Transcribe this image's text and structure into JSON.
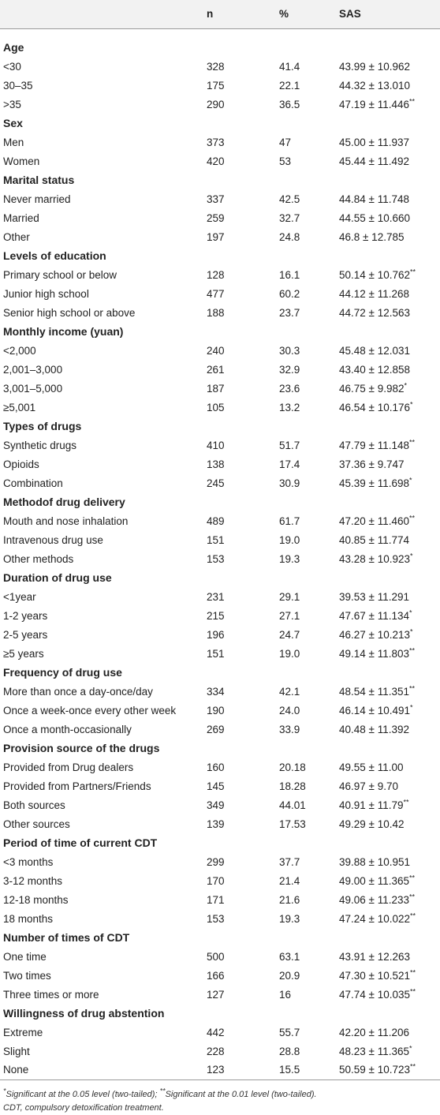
{
  "headers": {
    "label": "",
    "n": "n",
    "pct": "%",
    "sas": "SAS"
  },
  "sections": [
    {
      "title": "Age",
      "rows": [
        {
          "label": "<30",
          "n": "328",
          "pct": "41.4",
          "sas": "43.99 ± 10.962",
          "sig": ""
        },
        {
          "label": "30–35",
          "n": "175",
          "pct": "22.1",
          "sas": "44.32 ± 13.010",
          "sig": ""
        },
        {
          "label": ">35",
          "n": "290",
          "pct": "36.5",
          "sas": "47.19 ± 11.446",
          "sig": "**"
        }
      ]
    },
    {
      "title": "Sex",
      "rows": [
        {
          "label": "Men",
          "n": "373",
          "pct": "47",
          "sas": "45.00 ± 11.937",
          "sig": ""
        },
        {
          "label": "Women",
          "n": "420",
          "pct": "53",
          "sas": "45.44 ± 11.492",
          "sig": ""
        }
      ]
    },
    {
      "title": "Marital status",
      "rows": [
        {
          "label": "Never married",
          "n": "337",
          "pct": "42.5",
          "sas": "44.84 ± 11.748",
          "sig": ""
        },
        {
          "label": "Married",
          "n": "259",
          "pct": "32.7",
          "sas": "44.55 ± 10.660",
          "sig": ""
        },
        {
          "label": "Other",
          "n": "197",
          "pct": "24.8",
          "sas": "46.8 ± 12.785",
          "sig": ""
        }
      ]
    },
    {
      "title": "Levels of education",
      "rows": [
        {
          "label": "Primary school or below",
          "n": "128",
          "pct": "16.1",
          "sas": "50.14 ± 10.762",
          "sig": "**"
        },
        {
          "label": "Junior high school",
          "n": "477",
          "pct": "60.2",
          "sas": "44.12 ± 11.268",
          "sig": ""
        },
        {
          "label": "Senior high school or above",
          "n": "188",
          "pct": "23.7",
          "sas": "44.72 ± 12.563",
          "sig": ""
        }
      ]
    },
    {
      "title": "Monthly income (yuan)",
      "rows": [
        {
          "label": "<2,000",
          "n": "240",
          "pct": "30.3",
          "sas": "45.48 ± 12.031",
          "sig": ""
        },
        {
          "label": "2,001–3,000",
          "n": "261",
          "pct": "32.9",
          "sas": "43.40 ± 12.858",
          "sig": ""
        },
        {
          "label": "3,001–5,000",
          "n": "187",
          "pct": "23.6",
          "sas": "46.75 ± 9.982",
          "sig": "*"
        },
        {
          "label": "≥5,001",
          "n": "105",
          "pct": "13.2",
          "sas": "46.54 ± 10.176",
          "sig": "*"
        }
      ]
    },
    {
      "title": "Types of drugs",
      "rows": [
        {
          "label": "Synthetic drugs",
          "n": "410",
          "pct": "51.7",
          "sas": "47.79 ± 11.148",
          "sig": "**"
        },
        {
          "label": "Opioids",
          "n": "138",
          "pct": "17.4",
          "sas": "37.36 ± 9.747",
          "sig": ""
        },
        {
          "label": "Combination",
          "n": "245",
          "pct": "30.9",
          "sas": "45.39 ± 11.698",
          "sig": "*"
        }
      ]
    },
    {
      "title": "Methodof drug delivery",
      "rows": [
        {
          "label": "Mouth and nose inhalation",
          "n": "489",
          "pct": "61.7",
          "sas": "47.20 ± 11.460",
          "sig": "**"
        },
        {
          "label": "Intravenous drug use",
          "n": "151",
          "pct": "19.0",
          "sas": "40.85 ± 11.774",
          "sig": ""
        },
        {
          "label": "Other methods",
          "n": "153",
          "pct": "19.3",
          "sas": "43.28 ± 10.923",
          "sig": "*"
        }
      ]
    },
    {
      "title": "Duration of drug use",
      "rows": [
        {
          "label": "<1year",
          "n": "231",
          "pct": "29.1",
          "sas": "39.53 ± 11.291",
          "sig": ""
        },
        {
          "label": "1-2 years",
          "n": "215",
          "pct": "27.1",
          "sas": "47.67 ± 11.134",
          "sig": "*"
        },
        {
          "label": "2-5 years",
          "n": "196",
          "pct": "24.7",
          "sas": "46.27 ± 10.213",
          "sig": "*"
        },
        {
          "label": "≥5 years",
          "n": "151",
          "pct": "19.0",
          "sas": "49.14 ± 11.803",
          "sig": "**"
        }
      ]
    },
    {
      "title": "Frequency of drug use",
      "rows": [
        {
          "label": "More than once a day-once/day",
          "n": "334",
          "pct": "42.1",
          "sas": "48.54 ± 11.351",
          "sig": "**"
        },
        {
          "label": "Once a week-once every other week",
          "n": "190",
          "pct": "24.0",
          "sas": "46.14 ± 10.491",
          "sig": "*"
        },
        {
          "label": "Once a month-occasionally",
          "n": "269",
          "pct": "33.9",
          "sas": "40.48 ± 11.392",
          "sig": ""
        }
      ]
    },
    {
      "title": "Provision source of the drugs",
      "rows": [
        {
          "label": "Provided from Drug dealers",
          "n": "160",
          "pct": "20.18",
          "sas": "49.55 ± 11.00",
          "sig": ""
        },
        {
          "label": "Provided from Partners/Friends",
          "n": "145",
          "pct": "18.28",
          "sas": "46.97 ± 9.70",
          "sig": ""
        },
        {
          "label": "Both sources",
          "n": "349",
          "pct": "44.01",
          "sas": "40.91 ± 11.79",
          "sig": "**"
        },
        {
          "label": "Other sources",
          "n": "139",
          "pct": "17.53",
          "sas": "49.29 ± 10.42",
          "sig": ""
        }
      ]
    },
    {
      "title": "Period of time of current CDT",
      "rows": [
        {
          "label": "<3 months",
          "n": "299",
          "pct": "37.7",
          "sas": "39.88 ± 10.951",
          "sig": ""
        },
        {
          "label": "3-12 months",
          "n": "170",
          "pct": "21.4",
          "sas": "49.00 ± 11.365",
          "sig": "**"
        },
        {
          "label": "12-18 months",
          "n": "171",
          "pct": "21.6",
          "sas": "49.06 ± 11.233",
          "sig": "**"
        },
        {
          "label": "18 months",
          "n": "153",
          "pct": "19.3",
          "sas": "47.24 ± 10.022",
          "sig": "**"
        }
      ]
    },
    {
      "title": "Number of times of CDT",
      "rows": [
        {
          "label": "One time",
          "n": "500",
          "pct": "63.1",
          "sas": "43.91 ± 12.263",
          "sig": ""
        },
        {
          "label": "Two times",
          "n": "166",
          "pct": "20.9",
          "sas": "47.30 ± 10.521",
          "sig": "**"
        },
        {
          "label": "Three times or more",
          "n": "127",
          "pct": "16",
          "sas": "47.74 ± 10.035",
          "sig": "**"
        }
      ]
    },
    {
      "title": "Willingness of drug abstention",
      "rows": [
        {
          "label": "Extreme",
          "n": "442",
          "pct": "55.7",
          "sas": "42.20 ± 11.206",
          "sig": ""
        },
        {
          "label": "Slight",
          "n": "228",
          "pct": "28.8",
          "sas": "48.23 ± 11.365",
          "sig": "*"
        },
        {
          "label": "None",
          "n": "123",
          "pct": "15.5",
          "sas": "50.59 ± 10.723",
          "sig": "**"
        }
      ]
    }
  ],
  "footnote": {
    "sig1_mark": "*",
    "sig1_text": "Significant at the 0.05 level (two-tailed); ",
    "sig2_mark": "**",
    "sig2_text": "Significant at the 0.01 level (two-tailed).",
    "abbrev": "CDT, compulsory detoxification treatment."
  }
}
